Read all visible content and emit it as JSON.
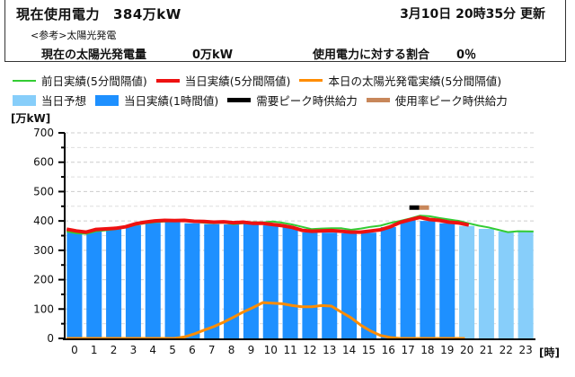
{
  "header": {
    "current_label": "現在使用電力",
    "current_value": "384万kW",
    "updated": "3月10日 20時35分 更新",
    "reference": "<参考>太陽光発電",
    "solar_label": "現在の太陽光発電量",
    "solar_value": "0万kW",
    "ratio_label": "使用電力に対する割合",
    "ratio_value": "0％"
  },
  "legend": [
    {
      "label": "前日実績(5分間隔値)",
      "type": "line",
      "color": "#33cc33"
    },
    {
      "label": "当日実績(5分間隔値)",
      "type": "line",
      "color": "#ee1111"
    },
    {
      "label": "本日の太陽光発電実績(5分間隔値)",
      "type": "line",
      "color": "#ff8c00"
    },
    {
      "label": "当日予想",
      "type": "box",
      "color": "#87cefa"
    },
    {
      "label": "当日実績(1時間値)",
      "type": "box",
      "color": "#1e90ff"
    },
    {
      "label": "需要ピーク時供給力",
      "type": "line",
      "color": "#000000"
    },
    {
      "label": "使用率ピーク時供給力",
      "type": "line",
      "color": "#c8875a"
    }
  ],
  "axis": {
    "y_unit": "[万kW]",
    "x_unit": "[時]"
  },
  "chart_data": {
    "type": "bar",
    "title": "",
    "xlabel": "[時]",
    "ylabel": "[万kW]",
    "ylim": [
      0,
      700
    ],
    "yticks": [
      0,
      100,
      200,
      300,
      400,
      500,
      600,
      700
    ],
    "grid": true,
    "legend_position": "top",
    "categories": [
      "0",
      "1",
      "2",
      "3",
      "4",
      "5",
      "6",
      "7",
      "8",
      "9",
      "10",
      "11",
      "12",
      "13",
      "14",
      "15",
      "16",
      "17",
      "18",
      "19",
      "20",
      "21",
      "22",
      "23"
    ],
    "series": [
      {
        "name": "当日実績(1時間値)",
        "type": "bar",
        "color": "#1e90ff",
        "values": [
          364,
          368,
          373,
          385,
          394,
          400,
          392,
          389,
          388,
          390,
          385,
          379,
          361,
          360,
          358,
          360,
          379,
          403,
          400,
          392,
          null,
          null,
          null,
          null
        ]
      },
      {
        "name": "当日予想",
        "type": "bar",
        "color": "#87cefa",
        "values": [
          null,
          null,
          null,
          null,
          null,
          null,
          null,
          null,
          null,
          null,
          null,
          null,
          null,
          null,
          null,
          null,
          null,
          null,
          null,
          null,
          383,
          373,
          364,
          367
        ]
      },
      {
        "name": "当日実績(5分間隔値)",
        "type": "line",
        "color": "#ee1111",
        "x": [
          0,
          0.5,
          1,
          1.5,
          2,
          2.5,
          3,
          3.5,
          4,
          4.5,
          5,
          5.5,
          6,
          6.5,
          7,
          7.5,
          8,
          8.5,
          9,
          9.5,
          10,
          10.5,
          11,
          11.5,
          12,
          12.5,
          13,
          13.5,
          14,
          14.5,
          15,
          15.5,
          16,
          16.5,
          17,
          17.5,
          18,
          18.5,
          19,
          19.5,
          20,
          20.5
        ],
        "values": [
          372,
          366,
          362,
          371,
          373,
          375,
          380,
          390,
          396,
          400,
          402,
          401,
          402,
          399,
          398,
          396,
          397,
          394,
          396,
          392,
          392,
          388,
          384,
          378,
          368,
          365,
          366,
          367,
          365,
          362,
          362,
          366,
          370,
          380,
          395,
          404,
          412,
          405,
          402,
          396,
          393,
          386
        ]
      },
      {
        "name": "前日実績(5分間隔値)",
        "type": "line",
        "color": "#33cc33",
        "x": [
          0,
          0.5,
          1,
          1.5,
          2,
          2.5,
          3,
          3.5,
          4,
          4.5,
          5,
          5.5,
          6,
          6.5,
          7,
          7.5,
          8,
          8.5,
          9,
          9.5,
          10,
          10.5,
          11,
          11.5,
          12,
          12.5,
          13,
          13.5,
          14,
          14.5,
          15,
          15.5,
          16,
          16.5,
          17,
          17.5,
          18,
          18.5,
          19,
          19.5,
          20,
          20.5,
          21,
          21.5,
          22,
          22.5,
          23,
          23.8
        ],
        "values": [
          364,
          358,
          356,
          365,
          368,
          372,
          378,
          386,
          392,
          396,
          398,
          399,
          400,
          397,
          394,
          392,
          394,
          389,
          392,
          396,
          395,
          398,
          394,
          388,
          380,
          372,
          374,
          375,
          375,
          370,
          374,
          380,
          384,
          393,
          400,
          408,
          418,
          416,
          410,
          405,
          400,
          392,
          384,
          378,
          370,
          362,
          365,
          364
        ]
      },
      {
        "name": "本日の太陽光発電実績(5分間隔値)",
        "type": "line",
        "color": "#ff8c00",
        "x": [
          0,
          5.5,
          6,
          6.5,
          7,
          7.5,
          8,
          8.5,
          9,
          9.5,
          10,
          10.5,
          11,
          11.5,
          12,
          12.5,
          13,
          13.5,
          14,
          14.5,
          15,
          15.5,
          16,
          16.5,
          17,
          20.3
        ],
        "values": [
          0,
          0,
          5,
          15,
          28,
          40,
          55,
          72,
          90,
          105,
          122,
          120,
          118,
          112,
          108,
          108,
          112,
          110,
          90,
          70,
          45,
          25,
          10,
          3,
          0,
          0
        ]
      },
      {
        "name": "需要ピーク時供給力",
        "type": "marker",
        "color": "#000000",
        "x": 17.8,
        "value": 447
      },
      {
        "name": "使用率ピーク時供給力",
        "type": "marker",
        "color": "#c8875a",
        "x": 18.3,
        "value": 447
      }
    ]
  }
}
